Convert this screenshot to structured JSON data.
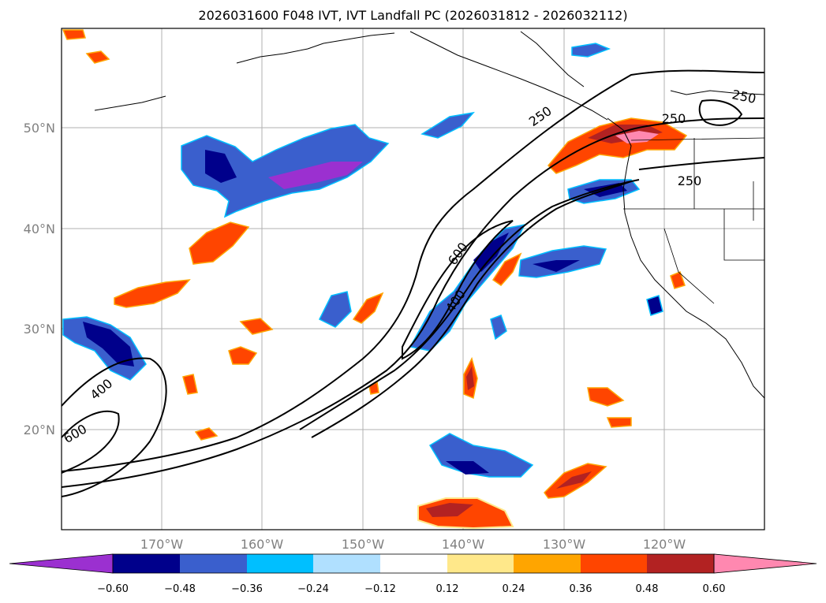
{
  "title": "2026031600 F048 IVT, IVT Landfall PC (2026031812 - 2026032112)",
  "latitude_labels": [
    "50°N",
    "40°N",
    "30°N",
    "20°N"
  ],
  "longitude_labels": [
    "170°W",
    "160°W",
    "150°W",
    "140°W",
    "130°W",
    "120°W"
  ],
  "contour_labels": [
    "250",
    "250",
    "250",
    "250",
    "600",
    "400",
    "400",
    "600"
  ],
  "colorbar": {
    "tick_labels": [
      "−0.60",
      "−0.48",
      "−0.36",
      "−0.24",
      "−0.12",
      "0.12",
      "0.24",
      "0.36",
      "0.48",
      "0.60"
    ],
    "colors": [
      "#9b30d0",
      "#00008b",
      "#3a5fcd",
      "#00bfff",
      "#b0e0ff",
      "#ffffff",
      "#ffe88a",
      "#ffa500",
      "#ff4500",
      "#b22222",
      "#ff88b0"
    ]
  }
}
